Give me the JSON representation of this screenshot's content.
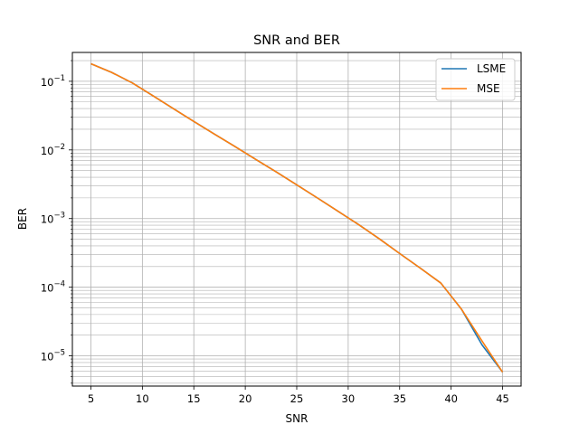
{
  "chart_data": {
    "type": "line",
    "title": "SNR and BER",
    "xlabel": "SNR",
    "ylabel": "BER",
    "xlim": [
      3.2,
      46.8
    ],
    "ylim_log10": [
      -5.44,
      -0.58
    ],
    "yscale": "log",
    "grid": "on (major and minor)",
    "legend_position": "top-right",
    "x_ticks": [
      5,
      10,
      15,
      20,
      25,
      30,
      35,
      40,
      45
    ],
    "x_tick_labels": [
      "5",
      "10",
      "15",
      "20",
      "25",
      "30",
      "35",
      "40",
      "45"
    ],
    "y_ticks": [
      {
        "exp": -5,
        "label_base": "10",
        "label_exp": "−5"
      },
      {
        "exp": -4,
        "label_base": "10",
        "label_exp": "−4"
      },
      {
        "exp": -3,
        "label_base": "10",
        "label_exp": "−3"
      },
      {
        "exp": -2,
        "label_base": "10",
        "label_exp": "−2"
      },
      {
        "exp": -1,
        "label_base": "10",
        "label_exp": "−1"
      }
    ],
    "x": [
      5,
      7,
      9,
      11,
      13,
      15,
      17,
      19,
      21,
      23,
      25,
      27,
      29,
      31,
      33,
      35,
      37,
      39,
      41,
      43,
      45
    ],
    "series": [
      {
        "name": "LSME",
        "color": "#1f77b4",
        "values": [
          0.18,
          0.135,
          0.095,
          0.062,
          0.04,
          0.026,
          0.017,
          0.0112,
          0.0073,
          0.0048,
          0.0031,
          0.002,
          0.00128,
          0.00082,
          0.00051,
          0.00031,
          0.00019,
          0.000115,
          4.8e-05,
          1.45e-05,
          5.8e-06
        ]
      },
      {
        "name": "MSE",
        "color": "#ff7f0e",
        "values": [
          0.18,
          0.135,
          0.095,
          0.062,
          0.04,
          0.026,
          0.017,
          0.0112,
          0.0073,
          0.0048,
          0.0031,
          0.002,
          0.00128,
          0.00082,
          0.00051,
          0.00031,
          0.00019,
          0.000115,
          4.8e-05,
          1.65e-05,
          5.8e-06
        ]
      }
    ]
  }
}
